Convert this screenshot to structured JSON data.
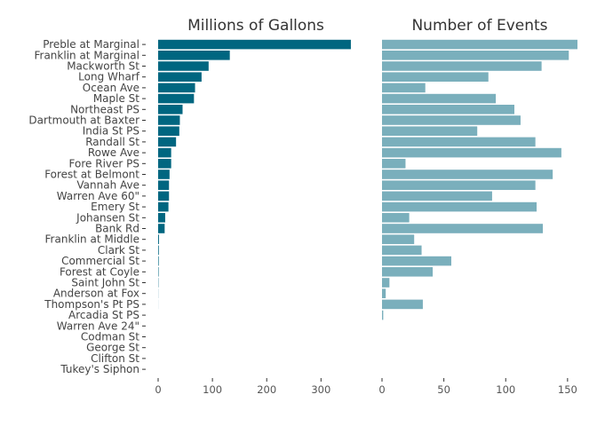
{
  "chart_data": {
    "type": "bar",
    "orientation": "horizontal",
    "categories": [
      "Preble at Marginal",
      "Franklin at Marginal",
      "Mackworth St",
      "Long Wharf",
      "Ocean Ave",
      "Maple St",
      "Northeast PS",
      "Dartmouth at Baxter",
      "India St PS",
      "Randall St",
      "Rowe Ave",
      "Fore River PS",
      "Forest at Belmont",
      "Vannah Ave",
      "Warren Ave 60\"",
      "Emery St",
      "Johansen St",
      "Bank Rd",
      "Franklin at Middle",
      "Clark St",
      "Commercial St",
      "Forest at Coyle",
      "Saint John St",
      "Anderson at Fox",
      "Thompson's Pt PS",
      "Arcadia St PS",
      "Warren Ave 24\"",
      "Codman St",
      "George St",
      "Clifton St",
      "Tukey's Siphon"
    ],
    "panels": [
      {
        "title": "Millions of Gallons",
        "color": "#006680",
        "xlim": [
          0,
          360
        ],
        "ticks": [
          0,
          100,
          200,
          300
        ],
        "tick_labels": [
          "0",
          "100",
          "200",
          "300"
        ],
        "values": [
          355,
          132,
          93,
          80,
          68,
          66,
          45,
          40,
          39,
          33,
          24,
          24,
          21,
          20,
          20,
          19,
          13,
          12,
          1.5,
          1.2,
          1,
          0.8,
          0.5,
          0.2,
          0.1,
          0,
          0,
          0,
          0,
          0,
          0
        ]
      },
      {
        "title": "Number of Events",
        "color": "#7AAFBC",
        "xlim": [
          0,
          158
        ],
        "ticks": [
          0,
          50,
          100,
          150
        ],
        "tick_labels": [
          "0",
          "50",
          "100",
          "150"
        ],
        "values": [
          158,
          151,
          129,
          86,
          35,
          92,
          107,
          112,
          77,
          124,
          145,
          19,
          138,
          124,
          89,
          125,
          22,
          130,
          26,
          32,
          56,
          41,
          6,
          3,
          33,
          1,
          0,
          0,
          0,
          0,
          0
        ]
      }
    ]
  }
}
